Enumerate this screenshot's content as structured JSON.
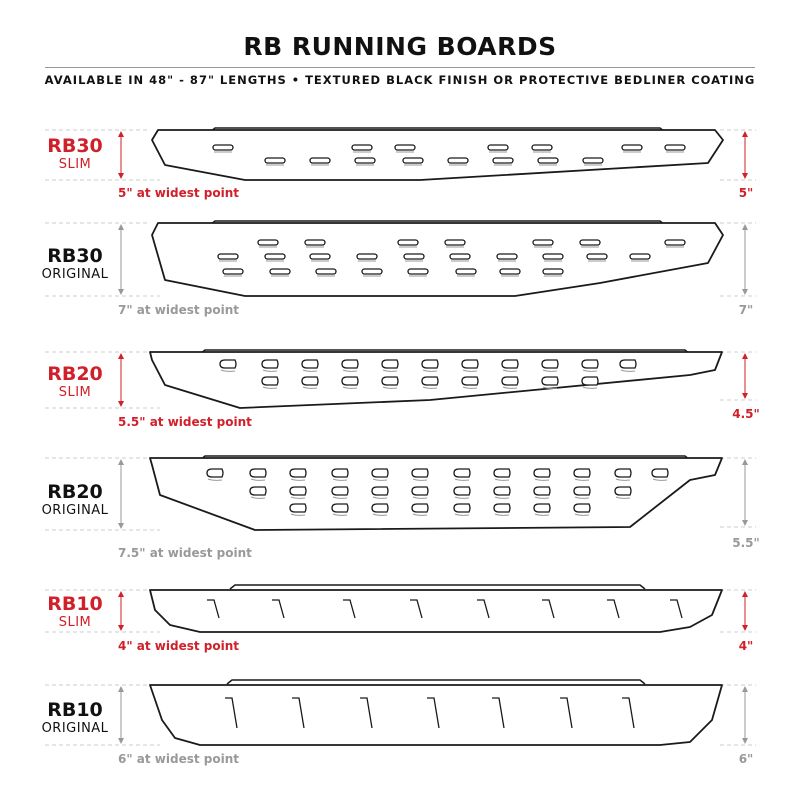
{
  "header": {
    "title": "RB RUNNING BOARDS",
    "subtitle": "AVAILABLE IN 48\" - 87\" LENGTHS  •  TEXTURED BLACK FINISH OR PROTECTIVE BEDLINER COATING"
  },
  "colors": {
    "accent": "#d0202a",
    "neutral": "#999999",
    "outline": "#1a1a1a"
  },
  "boards": [
    {
      "model": "RB30",
      "variant": "SLIM",
      "widest": "5\" at widest point",
      "end_height": "5\"",
      "color": "red"
    },
    {
      "model": "RB30",
      "variant": "ORIGINAL",
      "widest": "7\" at widest point",
      "end_height": "7\"",
      "color": "gray"
    },
    {
      "model": "RB20",
      "variant": "SLIM",
      "widest": "5.5\" at widest point",
      "end_height": "4.5\"",
      "color": "red"
    },
    {
      "model": "RB20",
      "variant": "ORIGINAL",
      "widest": "7.5\" at widest point",
      "end_height": "5.5\"",
      "color": "gray"
    },
    {
      "model": "RB10",
      "variant": "SLIM",
      "widest": "4\" at widest point",
      "end_height": "4\"",
      "color": "red"
    },
    {
      "model": "RB10",
      "variant": "ORIGINAL",
      "widest": "6\" at widest point",
      "end_height": "6\"",
      "color": "gray"
    }
  ]
}
